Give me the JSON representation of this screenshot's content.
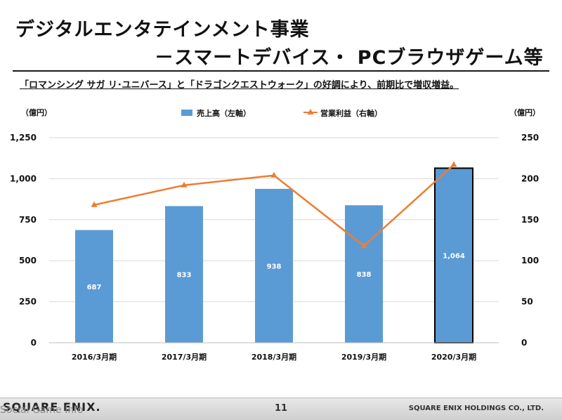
{
  "slide": {
    "title_line1": "デジタルエンタテインメント事業",
    "title_line2": "－スマートデバイス・ PCブラウザゲーム等",
    "subtitle": "「ロマンシング サガ リ･ユニバース」と「ドラゴンクエストウォーク」の好調により、前期比で増収増益。",
    "page_number": "11",
    "company": "SQUARE ENIX HOLDINGS CO., LTD.",
    "logo_text": "SQUARE ENIX.",
    "watermark": "Social Game Info"
  },
  "colors": {
    "bar": "#5b9bd5",
    "bar_highlight_border": "#000000",
    "line": "#ed7d31",
    "grid": "#d9d9d9",
    "text": "#111111"
  },
  "chart_data": {
    "type": "bar",
    "categories": [
      "2016/3月期",
      "2017/3月期",
      "2018/3月期",
      "2019/3月期",
      "2020/3月期"
    ],
    "series": [
      {
        "name": "売上高（左軸）",
        "type": "bar",
        "axis": "left",
        "values": [
          687,
          833,
          938,
          838,
          1064
        ],
        "data_labels": [
          "687",
          "833",
          "938",
          "838",
          "1,064"
        ],
        "highlighted_index": 4
      },
      {
        "name": "営業利益（右軸）",
        "type": "line",
        "axis": "right",
        "marker": "triangle",
        "values": [
          168,
          192,
          204,
          118,
          217
        ]
      }
    ],
    "y_left": {
      "unit": "（億円）",
      "ylim": [
        0,
        1250
      ],
      "ticks": [
        0,
        250,
        500,
        750,
        1000,
        1250
      ],
      "tick_labels": [
        "0",
        "250",
        "500",
        "750",
        "1,000",
        "1,250"
      ]
    },
    "y_right": {
      "unit": "（億円）",
      "ylim": [
        0,
        250
      ],
      "ticks": [
        0,
        50,
        100,
        150,
        200,
        250
      ],
      "tick_labels": [
        "0",
        "50",
        "100",
        "150",
        "200",
        "250"
      ]
    },
    "grid": true,
    "legend_position": "top-center"
  }
}
